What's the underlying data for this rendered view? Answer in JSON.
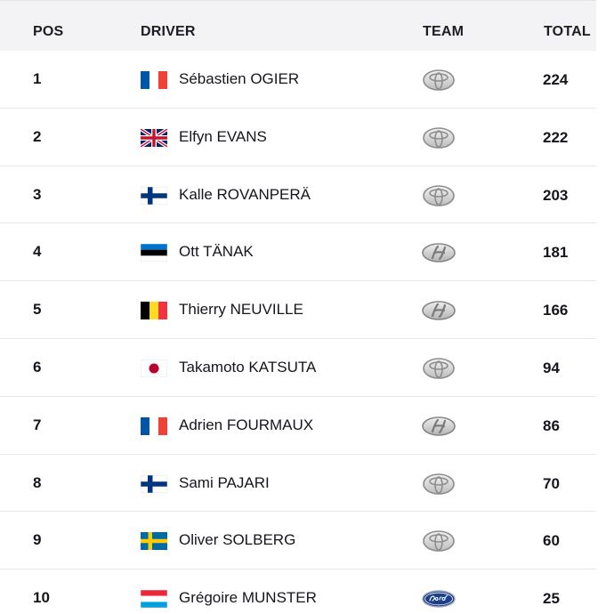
{
  "header": {
    "pos": "POS",
    "driver": "DRIVER",
    "team": "TEAM",
    "total": "TOTAL"
  },
  "rows": [
    {
      "pos": "1",
      "driver": "Sébastien OGIER",
      "flag": "france-flag-icon",
      "team_logo": "toyota-logo-icon",
      "total": "224"
    },
    {
      "pos": "2",
      "driver": "Elfyn EVANS",
      "flag": "uk-flag-icon",
      "team_logo": "toyota-logo-icon",
      "total": "222"
    },
    {
      "pos": "3",
      "driver": "Kalle ROVANPERÄ",
      "flag": "finland-flag-icon",
      "team_logo": "toyota-logo-icon",
      "total": "203"
    },
    {
      "pos": "4",
      "driver": "Ott TÄNAK",
      "flag": "estonia-flag-icon",
      "team_logo": "hyundai-logo-icon",
      "total": "181"
    },
    {
      "pos": "5",
      "driver": "Thierry NEUVILLE",
      "flag": "belgium-flag-icon",
      "team_logo": "hyundai-logo-icon",
      "total": "166"
    },
    {
      "pos": "6",
      "driver": "Takamoto KATSUTA",
      "flag": "japan-flag-icon",
      "team_logo": "toyota-logo-icon",
      "total": "94"
    },
    {
      "pos": "7",
      "driver": "Adrien FOURMAUX",
      "flag": "france-flag-icon",
      "team_logo": "hyundai-logo-icon",
      "total": "86"
    },
    {
      "pos": "8",
      "driver": "Sami PAJARI",
      "flag": "finland-flag-icon",
      "team_logo": "toyota-logo-icon",
      "total": "70"
    },
    {
      "pos": "9",
      "driver": "Oliver SOLBERG",
      "flag": "sweden-flag-icon",
      "team_logo": "toyota-logo-icon",
      "total": "60"
    },
    {
      "pos": "10",
      "driver": "Grégoire MUNSTER",
      "flag": "luxembourg-flag-icon",
      "team_logo": "ford-logo-icon",
      "total": "25"
    }
  ],
  "colors": {
    "header_bg": "#f3f3f5",
    "row_divider": "#e6e6e9",
    "text": "#15151e",
    "ford_blue": "#1c3f8c"
  }
}
